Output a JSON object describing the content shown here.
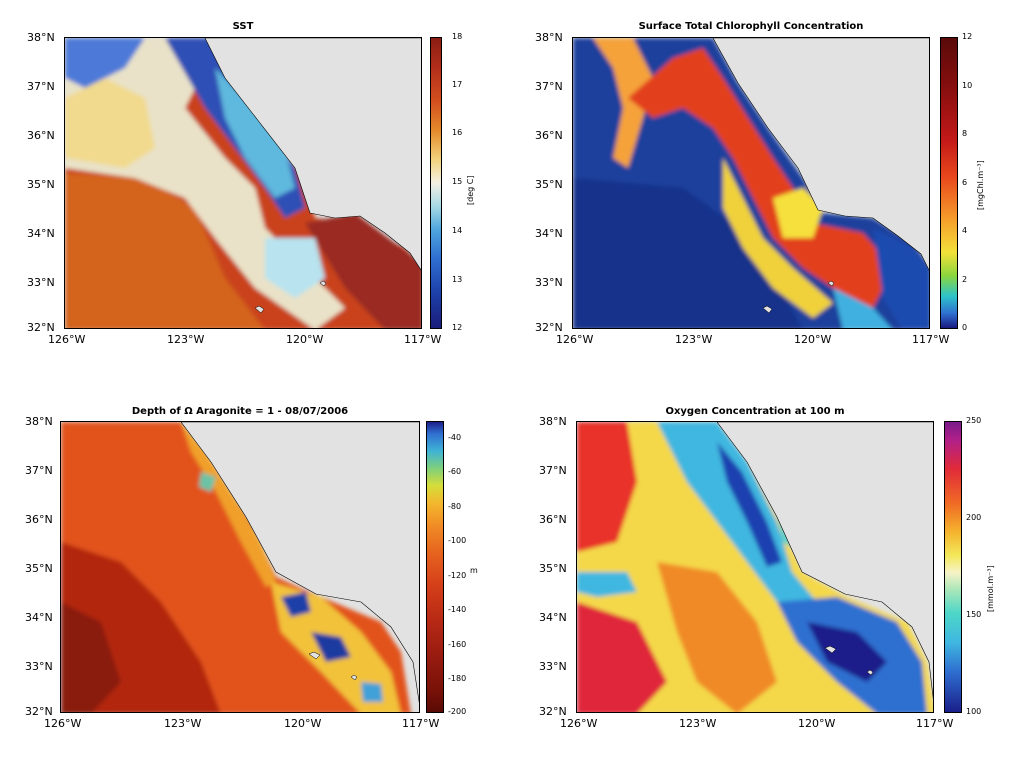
{
  "panels": [
    {
      "title": "SST",
      "yticks": [
        "38°N",
        "37°N",
        "36°N",
        "35°N",
        "34°N",
        "33°N",
        "32°N"
      ],
      "xticks": [
        "126°W",
        "123°W",
        "120°W",
        "117°W"
      ],
      "colorbar": {
        "ticks": [
          "18",
          "17",
          "16",
          "15",
          "14",
          "13",
          "12"
        ],
        "label": "[deg C]"
      }
    },
    {
      "title": "Surface Total Chlorophyll Concentration",
      "yticks": [
        "38°N",
        "37°N",
        "36°N",
        "35°N",
        "34°N",
        "33°N",
        "32°N"
      ],
      "xticks": [
        "126°W",
        "123°W",
        "120°W",
        "117°W"
      ],
      "colorbar": {
        "ticks": [
          "12",
          "10",
          "8",
          "6",
          "4",
          "2",
          "0"
        ],
        "label": "[mgChl.m⁻³]"
      }
    },
    {
      "title": "Depth of Ω Aragonite = 1 - 08/07/2006",
      "yticks": [
        "38°N",
        "37°N",
        "36°N",
        "35°N",
        "34°N",
        "33°N",
        "32°N"
      ],
      "xticks": [
        "126°W",
        "123°W",
        "120°W",
        "117°W"
      ],
      "colorbar": {
        "ticks": [
          "-40",
          "-60",
          "-80",
          "-100",
          "-120",
          "-140",
          "-160",
          "-180",
          "-200"
        ],
        "label": "m"
      }
    },
    {
      "title": "Oxygen Concentration at 100 m",
      "yticks": [
        "38°N",
        "37°N",
        "36°N",
        "35°N",
        "34°N",
        "33°N",
        "32°N"
      ],
      "xticks": [
        "126°W",
        "123°W",
        "120°W",
        "117°W"
      ],
      "colorbar": {
        "ticks": [
          "250",
          "200",
          "150",
          "100"
        ],
        "label": "[mmol.m⁻³]"
      }
    }
  ]
}
